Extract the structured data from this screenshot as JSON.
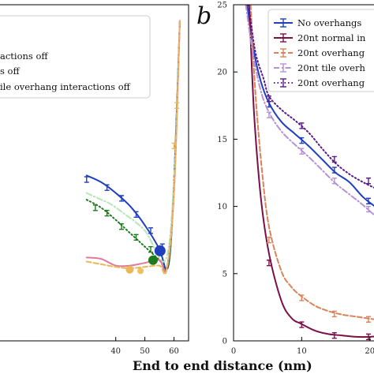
{
  "chart_data": [
    {
      "panel_label": "",
      "type": "line",
      "xlim": [
        0,
        65
      ],
      "ylim": [
        0,
        25
      ],
      "x_ticks": [
        40,
        50,
        60
      ],
      "grid": false,
      "legend_position": "top-right",
      "series": [
        {
          "name": "",
          "color": "#1f3fbf",
          "style": "solid",
          "points": [
            [
              30,
              12.3
            ],
            [
              35,
              11.8
            ],
            [
              40,
              11.0
            ],
            [
              45,
              10.0
            ],
            [
              50,
              8.6
            ],
            [
              55,
              6.8
            ],
            [
              57.5,
              5.3
            ],
            [
              59,
              7.5
            ],
            [
              60.5,
              14.5
            ],
            [
              62,
              23.8
            ]
          ],
          "error_bars": [
            [
              30,
              12.0
            ],
            [
              37,
              11.4
            ],
            [
              42,
              10.6
            ],
            [
              47,
              9.4
            ],
            [
              52,
              8.2
            ],
            [
              56,
              7.0
            ]
          ]
        },
        {
          "name": "",
          "color": "#1d7a1d",
          "style": "dotted",
          "points": [
            [
              30,
              10.5
            ],
            [
              35,
              9.9
            ],
            [
              40,
              9.0
            ],
            [
              45,
              8.0
            ],
            [
              50,
              7.0
            ],
            [
              55,
              6.0
            ],
            [
              57.5,
              5.3
            ],
            [
              59,
              7.5
            ],
            [
              60.5,
              14.5
            ],
            [
              62,
              23.8
            ]
          ],
          "error_bars": [
            [
              33,
              9.9
            ],
            [
              37,
              9.5
            ],
            [
              42,
              8.5
            ],
            [
              47,
              7.7
            ],
            [
              52,
              6.8
            ]
          ]
        },
        {
          "name": "",
          "color": "#b5e6b5",
          "style": "dash-dot",
          "points": [
            [
              30,
              11.0
            ],
            [
              35,
              10.5
            ],
            [
              38,
              10.2
            ],
            [
              42,
              9.6
            ],
            [
              50,
              8.2
            ],
            [
              57,
              6.0
            ],
            [
              60,
              12.0
            ],
            [
              62,
              23.8
            ]
          ],
          "error_bars": []
        },
        {
          "name": "",
          "color": "#e07a9a",
          "style": "solid",
          "points": [
            [
              30,
              6.2
            ],
            [
              35,
              6.1
            ],
            [
              40,
              5.6
            ],
            [
              45,
              5.6
            ],
            [
              50,
              5.8
            ],
            [
              55,
              6.0
            ],
            [
              57.5,
              5.4
            ],
            [
              60,
              11.0
            ],
            [
              62,
              23.8
            ]
          ],
          "error_bars": []
        },
        {
          "name": "",
          "color": "#e8b85a",
          "style": "dashed",
          "points": [
            [
              30,
              5.9
            ],
            [
              35,
              5.7
            ],
            [
              40,
              5.5
            ],
            [
              45,
              5.4
            ],
            [
              50,
              5.5
            ],
            [
              55,
              5.6
            ],
            [
              57.5,
              5.3
            ],
            [
              60,
              11.0
            ],
            [
              62,
              23.8
            ]
          ],
          "error_bars": [
            [
              60,
              14.5
            ],
            [
              61,
              17.5
            ]
          ]
        }
      ],
      "markers": [
        {
          "x": 55.2,
          "y": 6.7,
          "color": "#1f3fbf",
          "size": 7
        },
        {
          "x": 52.8,
          "y": 6.0,
          "color": "#1d7a1d",
          "size": 6
        },
        {
          "x": 44.8,
          "y": 5.3,
          "color": "#e8b85a",
          "size": 5
        },
        {
          "x": 48.5,
          "y": 5.2,
          "color": "#f0c060",
          "size": 4
        }
      ],
      "legend": [
        {
          "label": "actions off",
          "color": "#1d7a1d",
          "style": "dotted"
        },
        {
          "label": "s off",
          "color": "#e8b85a",
          "style": "dashed"
        },
        {
          "label": "ile overhang interactions off",
          "color": "#b5e6b5",
          "style": "dash-dot"
        }
      ]
    },
    {
      "panel_label": "b",
      "type": "line",
      "xlim": [
        0,
        22
      ],
      "ylim": [
        0,
        25
      ],
      "x_ticks": [
        0,
        10,
        20
      ],
      "y_ticks": [
        0,
        5,
        10,
        15,
        20,
        25
      ],
      "grid": false,
      "legend_position": "top-right",
      "series": [
        {
          "name": "No overhangs",
          "color": "#1f3fbf",
          "style": "solid",
          "points": [
            [
              2.0,
              25
            ],
            [
              3,
              21.5
            ],
            [
              4,
              19.3
            ],
            [
              5.2,
              17.7
            ],
            [
              7,
              16.3
            ],
            [
              9,
              15.4
            ],
            [
              11,
              14.5
            ],
            [
              13,
              13.5
            ],
            [
              15,
              12.5
            ],
            [
              17,
              11.8
            ],
            [
              19,
              10.7
            ],
            [
              21,
              9.9
            ],
            [
              22,
              9.5
            ]
          ],
          "error_bars": [
            [
              5.2,
              17.6
            ],
            [
              10,
              14.9
            ],
            [
              14.8,
              12.7
            ],
            [
              19.8,
              10.4
            ]
          ]
        },
        {
          "name": "20nt normal in",
          "color": "#7a1046",
          "style": "solid",
          "points": [
            [
              2.3,
              25
            ],
            [
              3,
              17.0
            ],
            [
              4,
              10.7
            ],
            [
              5.2,
              6.5
            ],
            [
              7,
              3.0
            ],
            [
              8.5,
              1.7
            ],
            [
              10,
              1.25
            ],
            [
              12,
              0.75
            ],
            [
              14,
              0.5
            ],
            [
              16,
              0.4
            ],
            [
              18,
              0.3
            ],
            [
              20,
              0.3
            ],
            [
              22,
              0.4
            ]
          ],
          "error_bars": [
            [
              5.2,
              5.8
            ],
            [
              10,
              1.2
            ],
            [
              14.8,
              0.4
            ],
            [
              19.8,
              0.3
            ]
          ]
        },
        {
          "name": "20nt overhang",
          "color": "#d9835a",
          "style": "dashed",
          "points": [
            [
              2.5,
              25
            ],
            [
              3.2,
              18.5
            ],
            [
              4.2,
              12.5
            ],
            [
              5.2,
              8.5
            ],
            [
              7,
              5.2
            ],
            [
              8.5,
              4.0
            ],
            [
              10,
              3.3
            ],
            [
              12,
              2.6
            ],
            [
              14,
              2.2
            ],
            [
              16,
              1.95
            ],
            [
              18,
              1.8
            ],
            [
              20,
              1.65
            ],
            [
              22,
              1.5
            ]
          ],
          "error_bars": [
            [
              5.2,
              7.5
            ],
            [
              10,
              3.2
            ],
            [
              14.8,
              2.0
            ],
            [
              19.8,
              1.6
            ]
          ]
        },
        {
          "name": "20nt tile overh",
          "color": "#b592d6",
          "style": "dash-dot",
          "points": [
            [
              1.8,
              25
            ],
            [
              2.8,
              21.5
            ],
            [
              4,
              18.6
            ],
            [
              5.2,
              17.0
            ],
            [
              7,
              15.6
            ],
            [
              9,
              14.6
            ],
            [
              11,
              13.7
            ],
            [
              13,
              12.7
            ],
            [
              15,
              11.7
            ],
            [
              17,
              10.9
            ],
            [
              19,
              10.1
            ],
            [
              21,
              9.2
            ],
            [
              22,
              8.8
            ]
          ],
          "error_bars": [
            [
              5.2,
              16.8
            ],
            [
              10,
              14.1
            ],
            [
              14.8,
              11.9
            ],
            [
              19.8,
              9.8
            ]
          ]
        },
        {
          "name": "20nt overhang",
          "color": "#5a1a8a",
          "style": "dotted",
          "points": [
            [
              2.2,
              25
            ],
            [
              3.2,
              21.5
            ],
            [
              4.4,
              19.5
            ],
            [
              5.2,
              18.2
            ],
            [
              7,
              17.2
            ],
            [
              9,
              16.4
            ],
            [
              11,
              15.5
            ],
            [
              13,
              14.3
            ],
            [
              15,
              13.2
            ],
            [
              17,
              12.4
            ],
            [
              19,
              11.8
            ],
            [
              21,
              11.3
            ],
            [
              22,
              11.0
            ]
          ],
          "error_bars": [
            [
              5.2,
              18.0
            ],
            [
              10,
              16.0
            ],
            [
              14.8,
              13.5
            ],
            [
              19.8,
              11.9
            ]
          ]
        }
      ]
    }
  ],
  "xlabel": "End to end distance (nm)"
}
